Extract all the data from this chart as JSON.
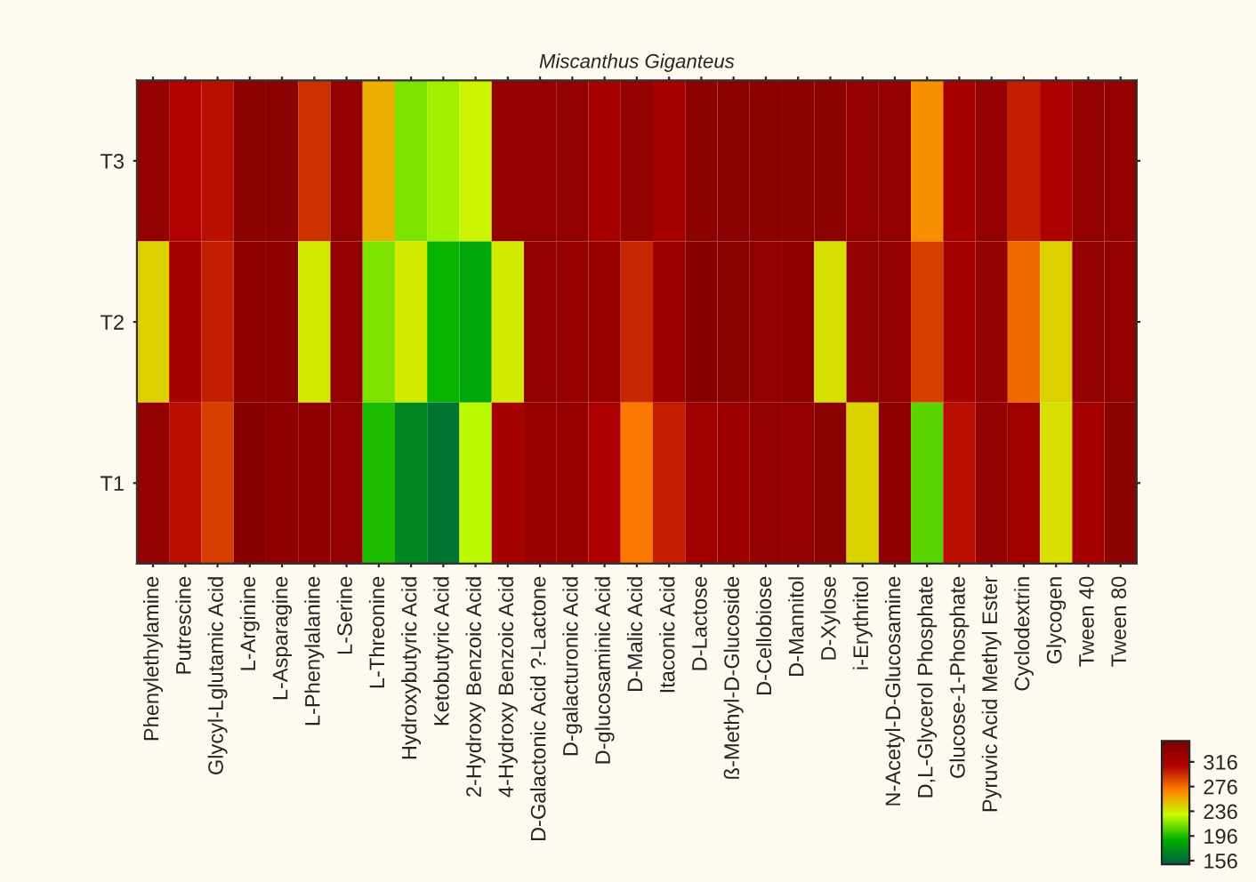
{
  "chart_data": {
    "type": "heatmap",
    "title": "Miscanthus Giganteus",
    "categories": [
      "Phenylethylamine",
      "Putrescine",
      "Glycyl-Lglutamic Acid",
      "L-Arginine",
      "L-Asparagine",
      "L-Phenylalanine",
      "L-Serine",
      "L-Threonine",
      "Hydroxybutyric Acid",
      "Ketobutyric Acid",
      "2-Hydroxy Benzoic Acid",
      "4-Hydroxy Benzoic Acid",
      "D-Galactonic Acid ?-Lactone",
      "D-galacturonic Acid",
      "D-glucosaminic Acid",
      "D-Malic Acid",
      "Itaconic Acid",
      "D-Lactose",
      "ß-Methyl-D-Glucoside",
      "D-Cellobiose",
      "D-Mannitol",
      "D-Xylose",
      "i-Erythritol",
      "N-Acetyl-D-Glucosamine",
      "D,L-Glycerol Phosphate",
      "Glucose-1-Phosphate",
      "Pyruvic Acid Methyl Ester",
      "Cyclodextrin",
      "Glycogen",
      "Tween 40",
      "Tween 80"
    ],
    "y_categories": [
      "T3",
      "T2",
      "T1"
    ],
    "cells": [
      [
        335,
        310,
        305,
        340,
        340,
        295,
        335,
        255,
        215,
        222,
        234,
        335,
        335,
        335,
        320,
        335,
        318,
        340,
        340,
        340,
        340,
        340,
        335,
        335,
        265,
        318,
        335,
        300,
        312,
        335,
        335
      ],
      [
        245,
        318,
        300,
        338,
        338,
        236,
        335,
        215,
        236,
        192,
        185,
        236,
        335,
        332,
        330,
        298,
        325,
        345,
        340,
        335,
        338,
        240,
        335,
        335,
        290,
        318,
        335,
        278,
        245,
        335,
        335
      ],
      [
        335,
        306,
        290,
        345,
        338,
        338,
        335,
        196,
        170,
        160,
        228,
        318,
        330,
        330,
        312,
        272,
        300,
        322,
        325,
        335,
        335,
        340,
        244,
        338,
        208,
        306,
        335,
        322,
        240,
        318,
        340
      ]
    ],
    "clim": [
      150,
      350
    ],
    "cticks": [
      156,
      196,
      236,
      276,
      316
    ]
  }
}
